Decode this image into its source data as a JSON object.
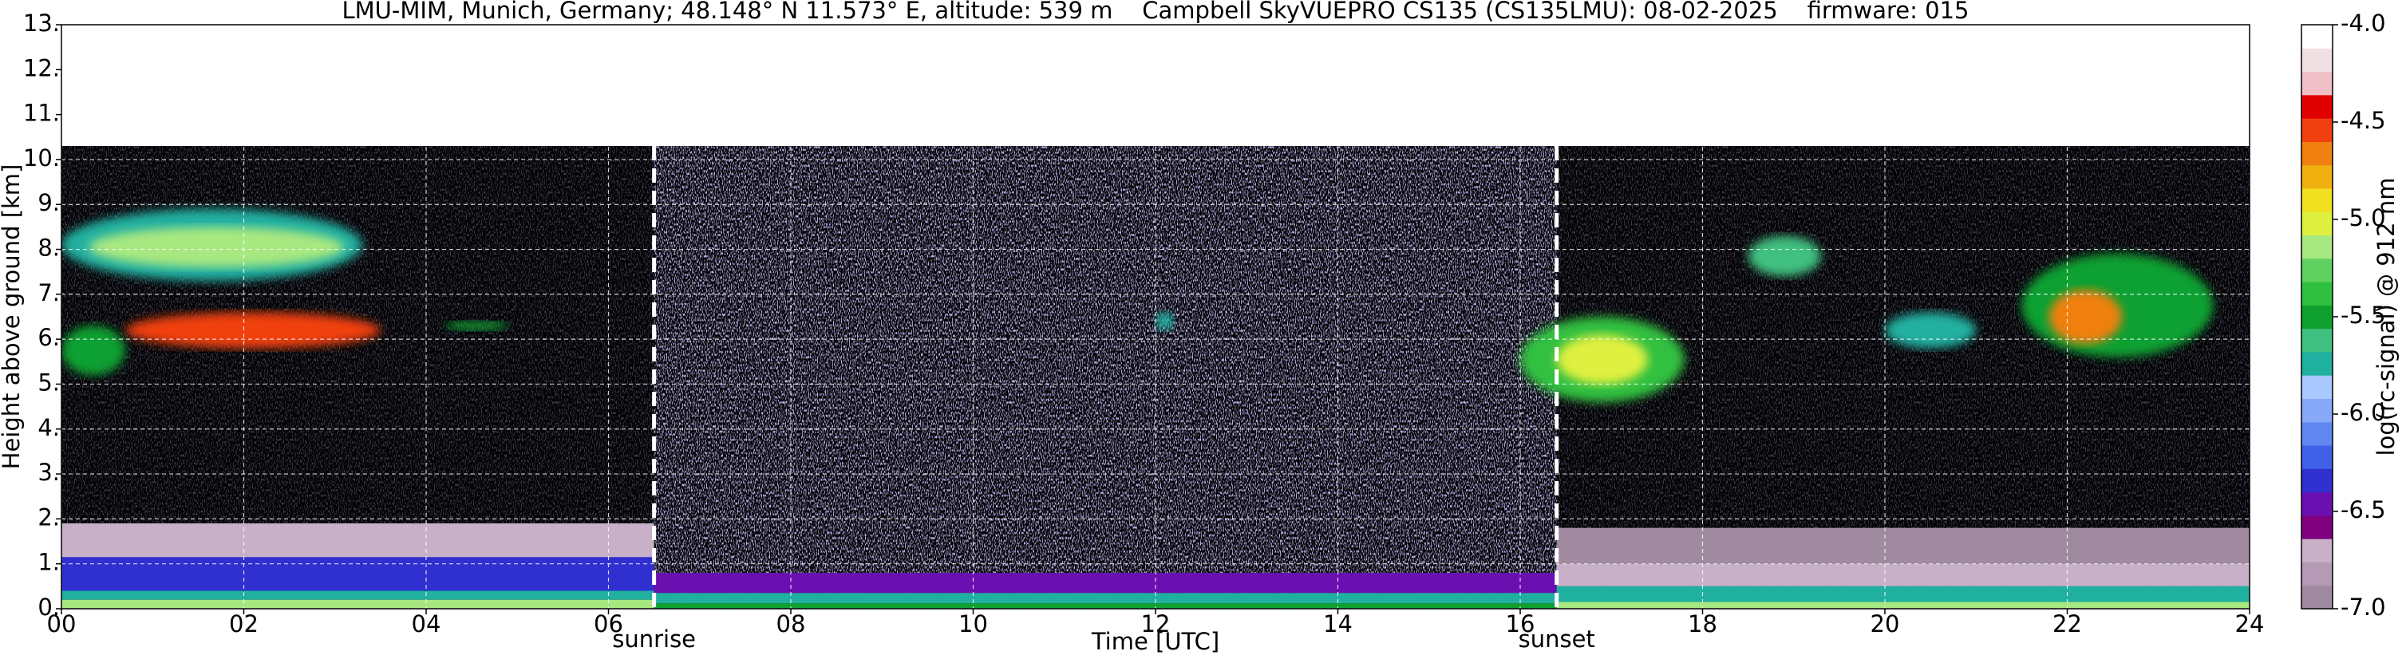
{
  "chart_data": {
    "type": "heatmap",
    "title": "LMU-MIM, Munich, Germany; 48.148° N 11.573° E, altitude: 539 m    Campbell SkyVUEPRO CS135 (CS135LMU): 08-02-2025    firmware: 015",
    "xlabel": "Time [UTC]",
    "ylabel": "Height above ground [km]",
    "colorbar_label": "log(rc-signal) @ 912 nm",
    "xlim": [
      0,
      24
    ],
    "ylim": [
      0,
      13
    ],
    "clim": [
      -7,
      -4
    ],
    "xticks": [
      {
        "value": 0,
        "label": "00"
      },
      {
        "value": 2,
        "label": "02"
      },
      {
        "value": 4,
        "label": "04"
      },
      {
        "value": 6,
        "label": "06"
      },
      {
        "value": 8,
        "label": "08"
      },
      10,
      12,
      14,
      16,
      18,
      20,
      22,
      24
    ],
    "yticks": [
      {
        "value": 0,
        "label": "0."
      },
      {
        "value": 1,
        "label": "1."
      },
      {
        "value": 2,
        "label": "2."
      },
      {
        "value": 3,
        "label": "3."
      },
      {
        "value": 4,
        "label": "4."
      },
      {
        "value": 5,
        "label": "5."
      },
      {
        "value": 6,
        "label": "6."
      },
      {
        "value": 7,
        "label": "7."
      },
      {
        "value": 8,
        "label": "8."
      },
      {
        "value": 9,
        "label": "9."
      },
      {
        "value": 10,
        "label": "10."
      },
      {
        "value": 11,
        "label": "11."
      },
      {
        "value": 12,
        "label": "12."
      },
      {
        "value": 13,
        "label": "13."
      }
    ],
    "cticks": [
      {
        "value": -4,
        "label": "-4.0"
      },
      -4.5,
      {
        "value": -5,
        "label": "-5.0"
      },
      -5.5,
      {
        "value": -6,
        "label": "-6.0"
      },
      -6.5,
      {
        "value": -7,
        "label": "-7.0"
      }
    ],
    "colormap": [
      "#a08aa0",
      "#b49ab4",
      "#c8b0c8",
      "#800080",
      "#6a10b0",
      "#3030d0",
      "#4060e8",
      "#6088f0",
      "#88a8f8",
      "#a8c8ff",
      "#20b0a0",
      "#40c080",
      "#10a030",
      "#30c040",
      "#60d060",
      "#a8e880",
      "#e0f040",
      "#f0e020",
      "#f0b010",
      "#f08010",
      "#f04010",
      "#e00000",
      "#f0c0c8",
      "#f0e0e4",
      "#ffffff"
    ],
    "grid": true,
    "data_top": 10.3,
    "annotations": [
      {
        "text": "sunrise",
        "x": 6.5
      },
      {
        "text": "sunset",
        "x": 16.4
      }
    ],
    "patches": [
      {
        "t0": 0,
        "t1": 6.5,
        "h0": 1.1,
        "h1": 1.9,
        "v": -6.7
      },
      {
        "t0": 0,
        "t1": 6.5,
        "h0": 0.4,
        "h1": 1.15,
        "v": -6.3
      },
      {
        "t0": 0,
        "t1": 6.5,
        "h0": 0.2,
        "h1": 0.4,
        "v": -5.8
      },
      {
        "t0": 0,
        "t1": 6.5,
        "h0": 0,
        "h1": 0.2,
        "v": -5.1
      },
      {
        "t0": 6.5,
        "t1": 16.4,
        "h0": 0.35,
        "h1": 0.8,
        "v": -6.4
      },
      {
        "t0": 6.5,
        "t1": 16.4,
        "h0": 0.12,
        "h1": 0.35,
        "v": -5.8
      },
      {
        "t0": 6.5,
        "t1": 16.4,
        "h0": 0,
        "h1": 0.12,
        "v": -5.5
      },
      {
        "t0": 16.4,
        "t1": 24,
        "h0": 1.0,
        "h1": 1.8,
        "v": -6.9
      },
      {
        "t0": 16.4,
        "t1": 24,
        "h0": 0.5,
        "h1": 1.0,
        "v": -6.7
      },
      {
        "t0": 16.4,
        "t1": 24,
        "h0": 0.15,
        "h1": 0.5,
        "v": -5.8
      },
      {
        "t0": 16.4,
        "t1": 24,
        "h0": 0,
        "h1": 0.15,
        "v": -5.2
      },
      {
        "t0": 0,
        "t1": 3.3,
        "h0": 7.3,
        "h1": 8.9,
        "v": -5.7
      },
      {
        "t0": 0.3,
        "t1": 3.1,
        "h0": 7.6,
        "h1": 8.5,
        "v": -5.1
      },
      {
        "t0": 0.7,
        "t1": 3.5,
        "h0": 5.8,
        "h1": 6.6,
        "v": -4.6
      },
      {
        "t0": 0,
        "t1": 0.7,
        "h0": 5.2,
        "h1": 6.3,
        "v": -5.5
      },
      {
        "t0": 4.2,
        "t1": 4.9,
        "h0": 6.2,
        "h1": 6.4,
        "v": -5.5
      },
      {
        "t0": 12.0,
        "t1": 12.2,
        "h0": 6.2,
        "h1": 6.6,
        "v": -5.8
      },
      {
        "t0": 16.0,
        "t1": 17.8,
        "h0": 4.6,
        "h1": 6.5,
        "v": -5.4
      },
      {
        "t0": 16.4,
        "t1": 17.4,
        "h0": 5.0,
        "h1": 6.1,
        "v": -5.0
      },
      {
        "t0": 18.5,
        "t1": 19.3,
        "h0": 7.4,
        "h1": 8.3,
        "v": -5.6
      },
      {
        "t0": 20.0,
        "t1": 21.0,
        "h0": 5.8,
        "h1": 6.6,
        "v": -5.8
      },
      {
        "t0": 21.5,
        "t1": 23.6,
        "h0": 5.6,
        "h1": 7.9,
        "v": -5.5
      },
      {
        "t0": 21.8,
        "t1": 22.6,
        "h0": 5.9,
        "h1": 7.1,
        "v": -4.7
      }
    ]
  }
}
